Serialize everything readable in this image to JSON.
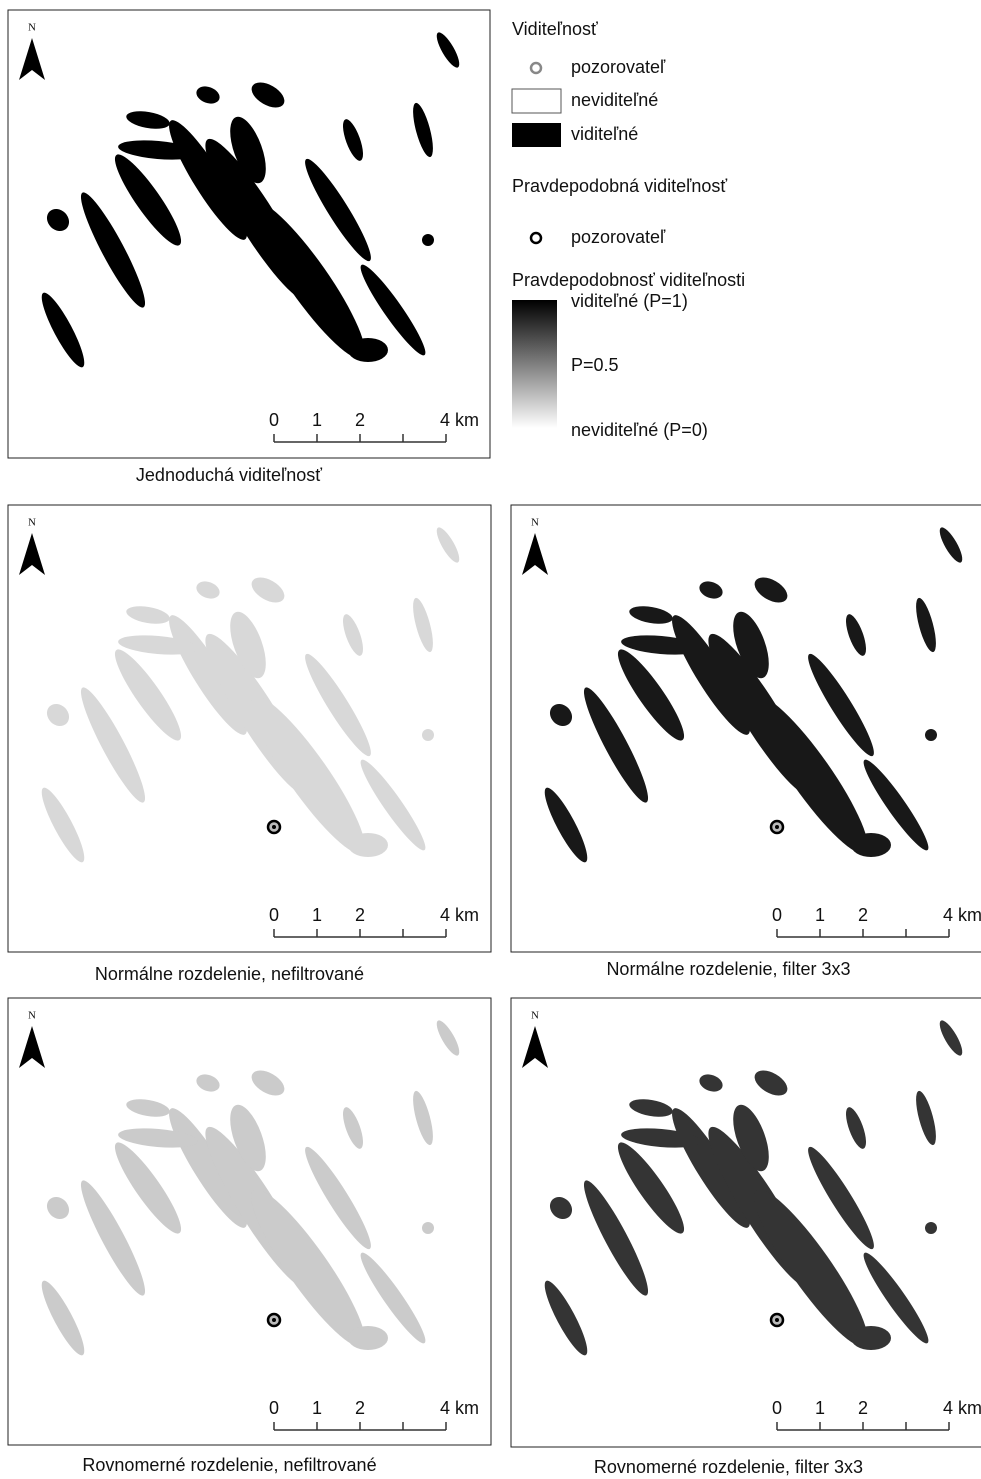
{
  "legend": {
    "simple_title": "Viditeľnosť",
    "simple_observer": "pozorovateľ",
    "simple_invisible": "neviditeľné",
    "simple_visible": "viditeľné",
    "prob_title": "Pravdepodobná viditeľnosť",
    "prob_observer": "pozorovateľ",
    "gradient_title": "Pravdepodobnosť viditeľnosti",
    "gradient_top": "viditeľné (P=1)",
    "gradient_mid": "P=0.5",
    "gradient_bottom": "neviditeľné (P=0)"
  },
  "panels": [
    {
      "caption": "Jednoduchá viditeľnosť",
      "north": "N",
      "scale": [
        "0",
        "1",
        "2",
        "4 km"
      ]
    },
    {
      "caption": "Normálne rozdelenie, nefiltrované",
      "north": "N",
      "scale": [
        "0",
        "1",
        "2",
        "4 km"
      ]
    },
    {
      "caption": "Normálne rozdelenie, filter 3x3",
      "north": "N",
      "scale": [
        "0",
        "1",
        "2",
        "4 km"
      ]
    },
    {
      "caption": "Rovnomerné rozdelenie, nefiltrované",
      "north": "N",
      "scale": [
        "0",
        "1",
        "2",
        "4 km"
      ]
    },
    {
      "caption": "Rovnomerné rozdelenie, filter 3x3",
      "north": "N",
      "scale": [
        "0",
        "1",
        "2",
        "4 km"
      ]
    }
  ]
}
